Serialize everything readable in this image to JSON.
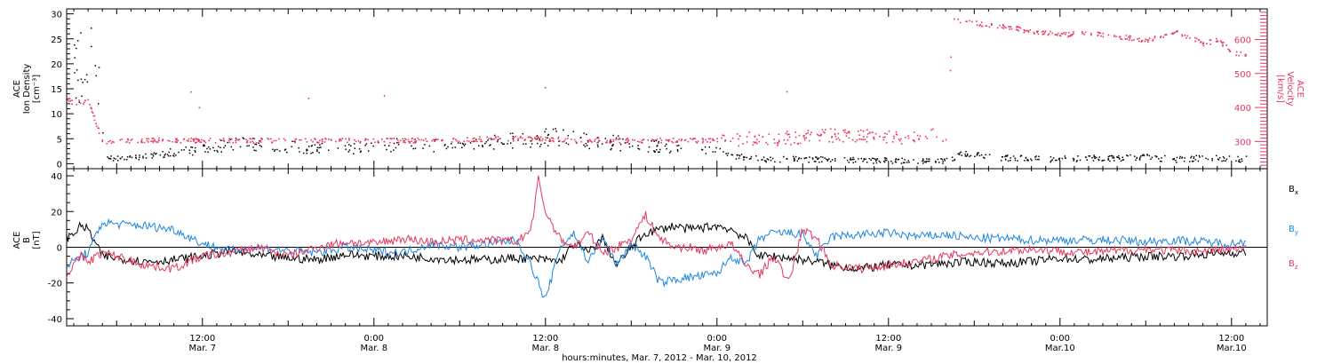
{
  "colors": {
    "black": "#000000",
    "pink": "#e8365f",
    "blue": "#1f86e0"
  },
  "chart_data": [
    {
      "type": "scatter",
      "panel": "ace-density-velocity",
      "ylabel_lines": [
        "ACE",
        "Ion Density",
        "[cm⁻³]"
      ],
      "ylabel_right_lines": [
        "ACE",
        "Velocity",
        "[km/s]"
      ],
      "ylim": [
        -1,
        31
      ],
      "yticks": [
        0,
        5,
        10,
        15,
        20,
        25,
        30
      ],
      "ylim_right": [
        220,
        690
      ],
      "yticks_right": [
        300,
        400,
        500,
        600
      ],
      "x_unit": "hours since 2012-03-07 00:00",
      "xlim": [
        2.5,
        86.5
      ],
      "series": [
        {
          "name": "density",
          "axis": "left",
          "color": "#000000",
          "x": [
            3,
            3.5,
            4,
            4.5,
            5,
            6,
            8,
            10,
            12,
            14,
            16,
            18,
            20,
            22,
            24,
            26,
            28,
            30,
            32,
            34,
            36,
            38,
            40,
            42,
            44,
            46,
            48,
            50,
            52,
            54,
            56,
            58,
            60,
            62,
            64,
            65,
            66,
            68,
            70,
            72,
            74,
            76,
            78,
            80,
            82,
            84,
            85
          ],
          "y": [
            18,
            20,
            22,
            24,
            1,
            1.2,
            1.6,
            2.5,
            3,
            4,
            4,
            3.5,
            3.2,
            3,
            3.4,
            4,
            3.8,
            3.6,
            4.2,
            5,
            5.5,
            5,
            4.5,
            4,
            3.6,
            3.4,
            2.6,
            1.2,
            1,
            1,
            1,
            0.8,
            0.7,
            0.6,
            0.6,
            2,
            1.8,
            1.3,
            1.1,
            1,
            1.3,
            1.2,
            1.5,
            0.9,
            1.3,
            1,
            1
          ]
        },
        {
          "name": "velocity",
          "axis": "right",
          "color": "#e8365f",
          "x": [
            2.5,
            3,
            4,
            5,
            6,
            8,
            10,
            12,
            14,
            16,
            18,
            20,
            22,
            24,
            26,
            28,
            30,
            32,
            34,
            36,
            38,
            40,
            42,
            44,
            46,
            48,
            50,
            52,
            54,
            56,
            58,
            60,
            62,
            63,
            64,
            64.5,
            66,
            68,
            70,
            72,
            74,
            76,
            78,
            80,
            82,
            83,
            84,
            85
          ],
          "y": [
            425,
            415,
            420,
            300,
            305,
            305,
            305,
            305,
            305,
            305,
            305,
            305,
            305,
            305,
            305,
            305,
            305,
            310,
            310,
            310,
            305,
            305,
            305,
            305,
            305,
            305,
            310,
            310,
            315,
            320,
            320,
            315,
            315,
            320,
            320,
            660,
            650,
            640,
            625,
            615,
            620,
            610,
            600,
            625,
            590,
            600,
            565,
            555
          ]
        }
      ]
    },
    {
      "type": "line",
      "panel": "ace-b-field",
      "ylabel_lines": [
        "ACE",
        "B",
        "[nT]"
      ],
      "ylim": [
        -44,
        44
      ],
      "yticks": [
        -40,
        -20,
        0,
        20,
        40
      ],
      "x_unit": "hours since 2012-03-07 00:00",
      "xlim": [
        2.5,
        86.5
      ],
      "xtick_labels": [
        {
          "x": 12,
          "time": "12:00",
          "date": "Mar. 7"
        },
        {
          "x": 24,
          "time": "0:00",
          "date": "Mar. 8"
        },
        {
          "x": 36,
          "time": "12:00",
          "date": "Mar. 8"
        },
        {
          "x": 48,
          "time": "0:00",
          "date": "Mar. 9"
        },
        {
          "x": 60,
          "time": "12:00",
          "date": "Mar. 9"
        },
        {
          "x": 72,
          "time": "0:00",
          "date": "Mar.10"
        },
        {
          "x": 84,
          "time": "12:00",
          "date": "Mar.10"
        }
      ],
      "xlabel": "hours:minutes, Mar.  7, 2012 - Mar. 10, 2012",
      "series": [
        {
          "name": "Bx",
          "label_main": "B",
          "label_sub": "x",
          "color": "#000000",
          "x": [
            2.5,
            3,
            3.5,
            4,
            5,
            6,
            8,
            10,
            12,
            14,
            16,
            18,
            20,
            22,
            24,
            26,
            28,
            30,
            32,
            34,
            36,
            37,
            38,
            39,
            40,
            41,
            42,
            43,
            44,
            45,
            46,
            47,
            48,
            49,
            50,
            51,
            52,
            53,
            54,
            55,
            56,
            58,
            60,
            62,
            64,
            66,
            68,
            70,
            72,
            74,
            76,
            78,
            80,
            82,
            84,
            85
          ],
          "y": [
            5,
            8,
            12,
            10,
            -5,
            -6,
            -8,
            -7,
            -5,
            -2,
            -5,
            -6,
            -7,
            -4,
            -5,
            -5,
            -6,
            -7,
            -7,
            -6,
            -7,
            -8,
            2,
            -3,
            5,
            -10,
            0,
            8,
            10,
            12,
            10,
            11,
            12,
            10,
            5,
            -5,
            -5,
            -6,
            -7,
            -8,
            -10,
            -12,
            -10,
            -10,
            -9,
            -8,
            -9,
            -8,
            -6,
            -7,
            -6,
            -5,
            -5,
            -4,
            -3,
            -3
          ]
        },
        {
          "name": "By",
          "label_main": "B",
          "label_sub": "y",
          "color": "#1f86e0",
          "x": [
            2.5,
            3,
            3.5,
            4,
            5,
            6,
            8,
            10,
            12,
            14,
            16,
            18,
            20,
            22,
            24,
            26,
            28,
            30,
            32,
            34,
            35,
            36,
            37,
            38,
            39,
            40,
            41,
            42,
            43,
            44,
            45,
            46,
            47,
            48,
            49,
            50,
            51,
            52,
            53,
            54,
            55,
            56,
            58,
            60,
            62,
            64,
            66,
            68,
            70,
            72,
            74,
            76,
            78,
            80,
            82,
            84,
            85
          ],
          "y": [
            -10,
            -8,
            -5,
            -3,
            14,
            13,
            12,
            10,
            2,
            -2,
            0,
            -2,
            -3,
            0,
            -2,
            -3,
            2,
            0,
            2,
            4,
            -10,
            -30,
            0,
            8,
            -8,
            5,
            -10,
            2,
            -5,
            -20,
            -18,
            -17,
            -16,
            -15,
            -5,
            -10,
            5,
            8,
            8,
            7,
            -5,
            6,
            7,
            8,
            6,
            7,
            5,
            5,
            4,
            4,
            4,
            4,
            3,
            4,
            3,
            2,
            3
          ]
        },
        {
          "name": "Bz",
          "label_main": "B",
          "label_sub": "z",
          "color": "#e8365f",
          "x": [
            2.5,
            3,
            3.5,
            4,
            5,
            6,
            8,
            10,
            12,
            14,
            16,
            18,
            20,
            22,
            24,
            26,
            28,
            30,
            32,
            34,
            35,
            35.5,
            36,
            37,
            38,
            39,
            40,
            41,
            42,
            43,
            44,
            45,
            46,
            47,
            48,
            49,
            50,
            51,
            52,
            53,
            54,
            55,
            56,
            58,
            60,
            62,
            64,
            66,
            68,
            70,
            72,
            74,
            76,
            78,
            80,
            82,
            84,
            85
          ],
          "y": [
            -15,
            -10,
            -5,
            -8,
            -3,
            -5,
            -10,
            -12,
            -5,
            -3,
            0,
            -5,
            0,
            3,
            2,
            5,
            3,
            4,
            4,
            3,
            10,
            38,
            20,
            5,
            0,
            8,
            -3,
            0,
            5,
            18,
            5,
            0,
            0,
            -2,
            0,
            2,
            -10,
            -15,
            -5,
            -20,
            10,
            5,
            -10,
            -12,
            -10,
            -8,
            -5,
            -3,
            -2,
            -1,
            -2,
            -3,
            -2,
            -1,
            -2,
            -2,
            -1,
            -1
          ]
        }
      ]
    }
  ]
}
